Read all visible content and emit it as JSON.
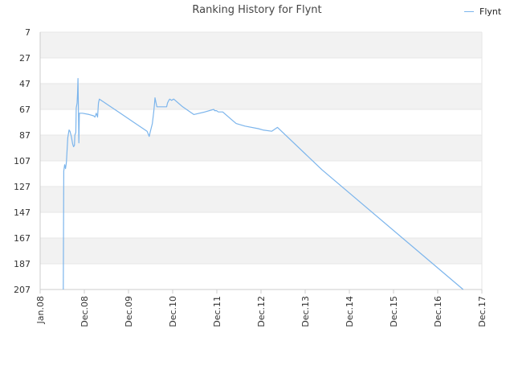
{
  "chart_data": {
    "type": "line",
    "title": "Ranking History for Flynt",
    "xlabel": "",
    "ylabel": "",
    "y_reversed": true,
    "ylim": [
      7,
      207
    ],
    "yticks": [
      7,
      27,
      47,
      67,
      87,
      107,
      127,
      147,
      167,
      187,
      207
    ],
    "xticks": [
      "Jan.08",
      "Dec.08",
      "Dec.09",
      "Dec.10",
      "Dec.11",
      "Dec.12",
      "Dec.13",
      "Dec.14",
      "Dec.15",
      "Dec.16",
      "Dec.17"
    ],
    "xlim": [
      2008.0,
      2017.92
    ],
    "grid": "alternating horizontal bands",
    "legend_position": "top-right",
    "colors": {
      "line": "#7cb5ec",
      "band": "#f2f2f2",
      "axis": "#cccccc"
    },
    "series": [
      {
        "name": "Flynt",
        "points": [
          [
            2008.52,
            207
          ],
          [
            2008.53,
            115
          ],
          [
            2008.55,
            110
          ],
          [
            2008.57,
            113
          ],
          [
            2008.59,
            108
          ],
          [
            2008.62,
            89
          ],
          [
            2008.65,
            83
          ],
          [
            2008.67,
            84
          ],
          [
            2008.7,
            88
          ],
          [
            2008.73,
            94
          ],
          [
            2008.75,
            96
          ],
          [
            2008.77,
            95
          ],
          [
            2008.78,
            87
          ],
          [
            2008.8,
            85
          ],
          [
            2008.81,
            66
          ],
          [
            2008.83,
            62
          ],
          [
            2008.84,
            54
          ],
          [
            2008.85,
            43
          ],
          [
            2008.86,
            70
          ],
          [
            2008.87,
            93
          ],
          [
            2008.88,
            70
          ],
          [
            2008.95,
            70
          ],
          [
            2009.1,
            71
          ],
          [
            2009.2,
            72
          ],
          [
            2009.23,
            73
          ],
          [
            2009.26,
            70
          ],
          [
            2009.29,
            73
          ],
          [
            2009.31,
            62
          ],
          [
            2009.33,
            59
          ],
          [
            2009.5,
            63
          ],
          [
            2009.8,
            70
          ],
          [
            2010.1,
            77
          ],
          [
            2010.4,
            84
          ],
          [
            2010.45,
            88
          ],
          [
            2010.47,
            85
          ],
          [
            2010.52,
            78
          ],
          [
            2010.55,
            69
          ],
          [
            2010.57,
            62
          ],
          [
            2010.58,
            58
          ],
          [
            2010.62,
            65
          ],
          [
            2010.75,
            65
          ],
          [
            2010.84,
            65
          ],
          [
            2010.86,
            62
          ],
          [
            2010.89,
            60
          ],
          [
            2010.91,
            59
          ],
          [
            2010.95,
            60
          ],
          [
            2011.0,
            59
          ],
          [
            2011.2,
            65
          ],
          [
            2011.45,
            71
          ],
          [
            2011.7,
            69
          ],
          [
            2011.9,
            67
          ],
          [
            2011.92,
            68
          ],
          [
            2011.96,
            68
          ],
          [
            2012.0,
            69
          ],
          [
            2012.1,
            69
          ],
          [
            2012.3,
            75
          ],
          [
            2012.4,
            78
          ],
          [
            2012.6,
            80
          ],
          [
            2012.9,
            82
          ],
          [
            2013.0,
            83
          ],
          [
            2013.2,
            84
          ],
          [
            2013.33,
            81
          ],
          [
            2014.33,
            114
          ],
          [
            2017.5,
            207
          ]
        ]
      }
    ]
  }
}
